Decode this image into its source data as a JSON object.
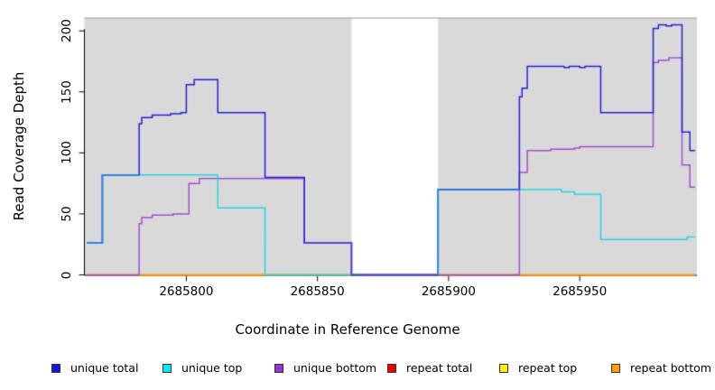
{
  "figure": {
    "xlabel": "Coordinate in Reference Genome",
    "ylabel": "Read Coverage Depth"
  },
  "legend": {
    "items": [
      {
        "label": "unique total",
        "color": "#1414dc"
      },
      {
        "label": "unique top",
        "color": "#00eef2"
      },
      {
        "label": "unique bottom",
        "color": "#9a30d8"
      },
      {
        "label": "repeat total",
        "color": "#f00000"
      },
      {
        "label": "repeat top",
        "color": "#fdf000"
      },
      {
        "label": "repeat bottom",
        "color": "#ffa200"
      }
    ]
  },
  "chart_data": {
    "type": "line",
    "subtype": "step-coverage",
    "title": "",
    "xlabel": "Coordinate in Reference Genome",
    "ylabel": "Read Coverage Depth",
    "xlim": [
      2685762,
      2685994
    ],
    "ylim": [
      0,
      210.5
    ],
    "xticks": [
      2685800,
      2685850,
      2685900,
      2685950
    ],
    "yticks": [
      0,
      50,
      100,
      150,
      200
    ],
    "grid": false,
    "legend_position": "bottom",
    "panel_background": "#ffffff",
    "shaded_regions": [
      {
        "x0": 2685762,
        "x1": 2685863,
        "color": "#d9d9d9"
      },
      {
        "x0": 2685896,
        "x1": 2685994,
        "color": "#d9d9d9"
      }
    ],
    "top_border_color": "#969696",
    "axis_color": "#000000",
    "blend_total_top_color": "#2585e8",
    "blend_total_bottom_color": "#5044cc",
    "series": [
      {
        "name": "repeat total",
        "color": "#e21616",
        "points": [
          [
            2685762,
            0
          ]
        ]
      },
      {
        "name": "repeat top",
        "color": "#f2e713",
        "points": [
          [
            2685762,
            0
          ]
        ]
      },
      {
        "name": "repeat bottom",
        "color": "#ff9e14",
        "points": [
          [
            2685762,
            0
          ]
        ]
      },
      {
        "name": "unique bottom",
        "color": "#a34fd4",
        "points": [
          [
            2685762,
            0
          ],
          [
            2685782,
            42
          ],
          [
            2685783,
            47
          ],
          [
            2685787,
            49
          ],
          [
            2685795,
            50
          ],
          [
            2685801,
            75
          ],
          [
            2685805,
            79
          ],
          [
            2685845,
            26
          ],
          [
            2685863,
            0
          ],
          [
            2685927,
            84
          ],
          [
            2685930,
            102
          ],
          [
            2685939,
            103
          ],
          [
            2685948,
            104
          ],
          [
            2685950,
            105
          ],
          [
            2685978,
            174
          ],
          [
            2685980,
            176
          ],
          [
            2685984,
            178
          ],
          [
            2685989,
            90
          ],
          [
            2685992,
            72
          ]
        ]
      },
      {
        "name": "unique top",
        "color": "#1fd8e4",
        "points": [
          [
            2685762,
            26
          ],
          [
            2685768,
            82
          ],
          [
            2685812,
            55
          ],
          [
            2685830,
            0
          ],
          [
            2685896,
            70
          ],
          [
            2685943,
            68
          ],
          [
            2685948,
            66
          ],
          [
            2685958,
            29
          ],
          [
            2685991,
            31
          ]
        ]
      },
      {
        "name": "unique total",
        "color": "#2222d9",
        "points": [
          [
            2685762,
            26
          ],
          [
            2685768,
            82
          ],
          [
            2685782,
            124
          ],
          [
            2685783,
            129
          ],
          [
            2685787,
            131
          ],
          [
            2685794,
            132
          ],
          [
            2685798,
            133
          ],
          [
            2685800,
            156
          ],
          [
            2685803,
            160
          ],
          [
            2685812,
            133
          ],
          [
            2685830,
            80
          ],
          [
            2685845,
            26
          ],
          [
            2685863,
            0
          ],
          [
            2685896,
            70
          ],
          [
            2685927,
            146
          ],
          [
            2685928,
            153
          ],
          [
            2685930,
            171
          ],
          [
            2685944,
            170
          ],
          [
            2685946,
            171
          ],
          [
            2685950,
            170
          ],
          [
            2685952,
            171
          ],
          [
            2685958,
            133
          ],
          [
            2685978,
            202
          ],
          [
            2685980,
            205
          ],
          [
            2685983,
            204
          ],
          [
            2685985,
            205
          ],
          [
            2685989,
            117
          ],
          [
            2685992,
            102
          ]
        ]
      }
    ]
  }
}
